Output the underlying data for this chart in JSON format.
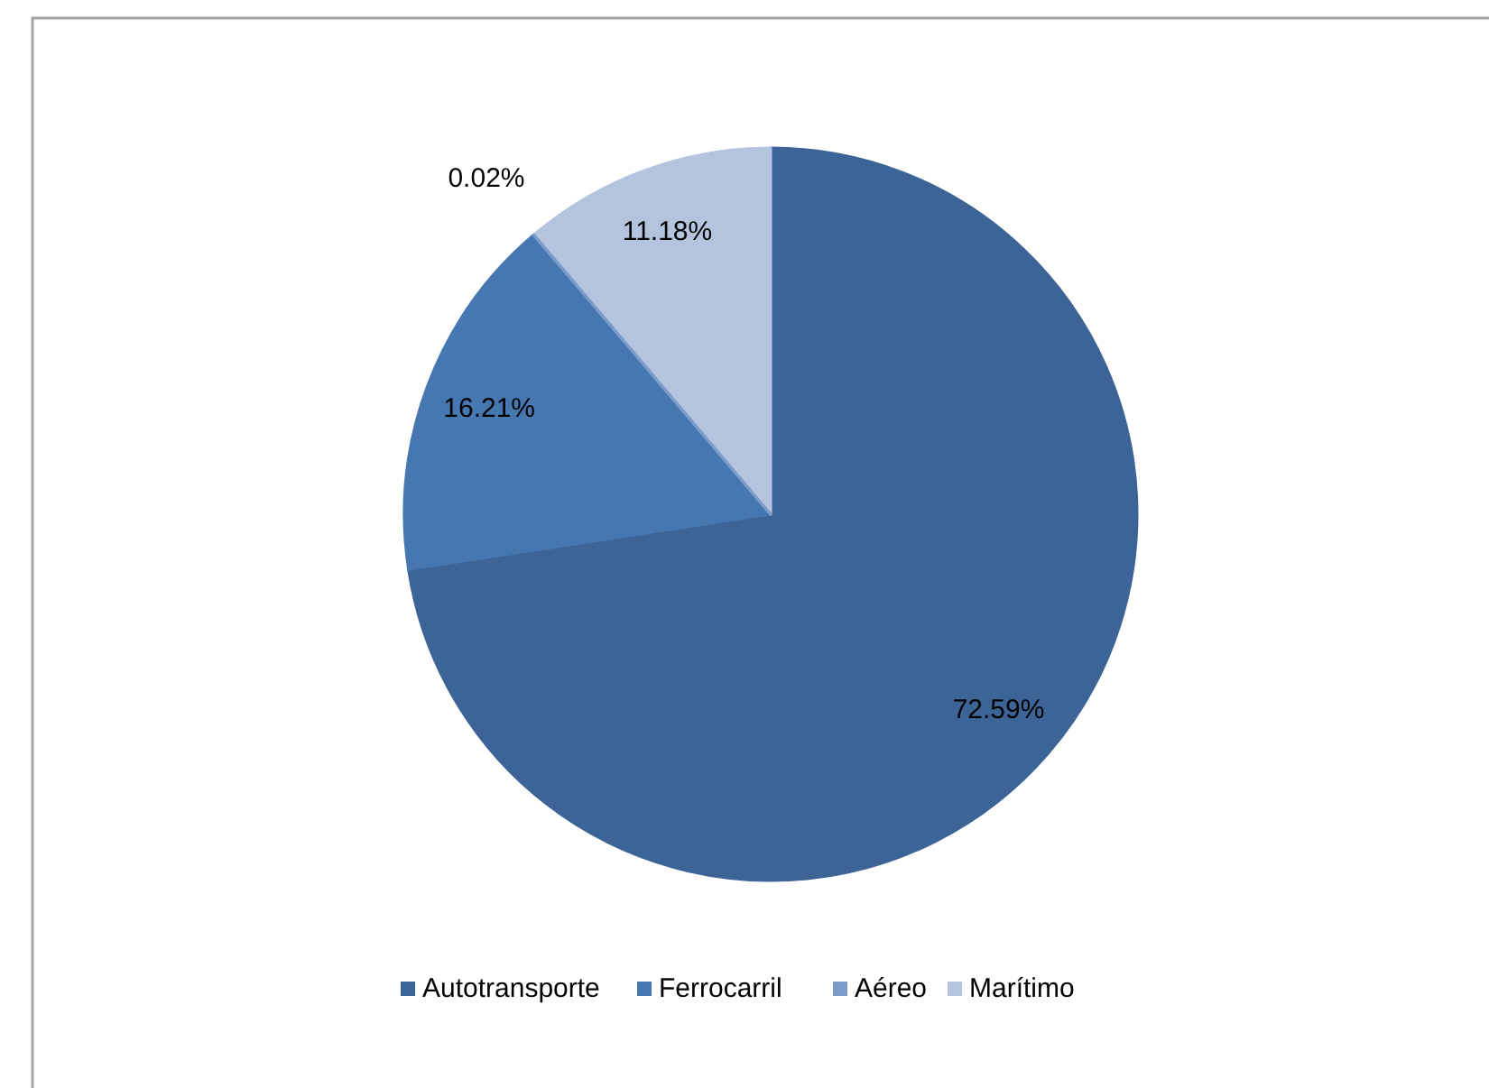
{
  "chart_data": {
    "type": "pie",
    "categories": [
      "Autotransporte",
      "Ferrocarril",
      "Aéreo",
      "Marítimo"
    ],
    "values": [
      72.59,
      16.21,
      0.02,
      11.18
    ],
    "colors": [
      "#3d6496",
      "#4777b0",
      "#7b9bcb",
      "#b4c3de"
    ],
    "value_labels": [
      "72.59%",
      "16.21%",
      "0.02%",
      "11.18%"
    ],
    "legend": "bottom"
  }
}
